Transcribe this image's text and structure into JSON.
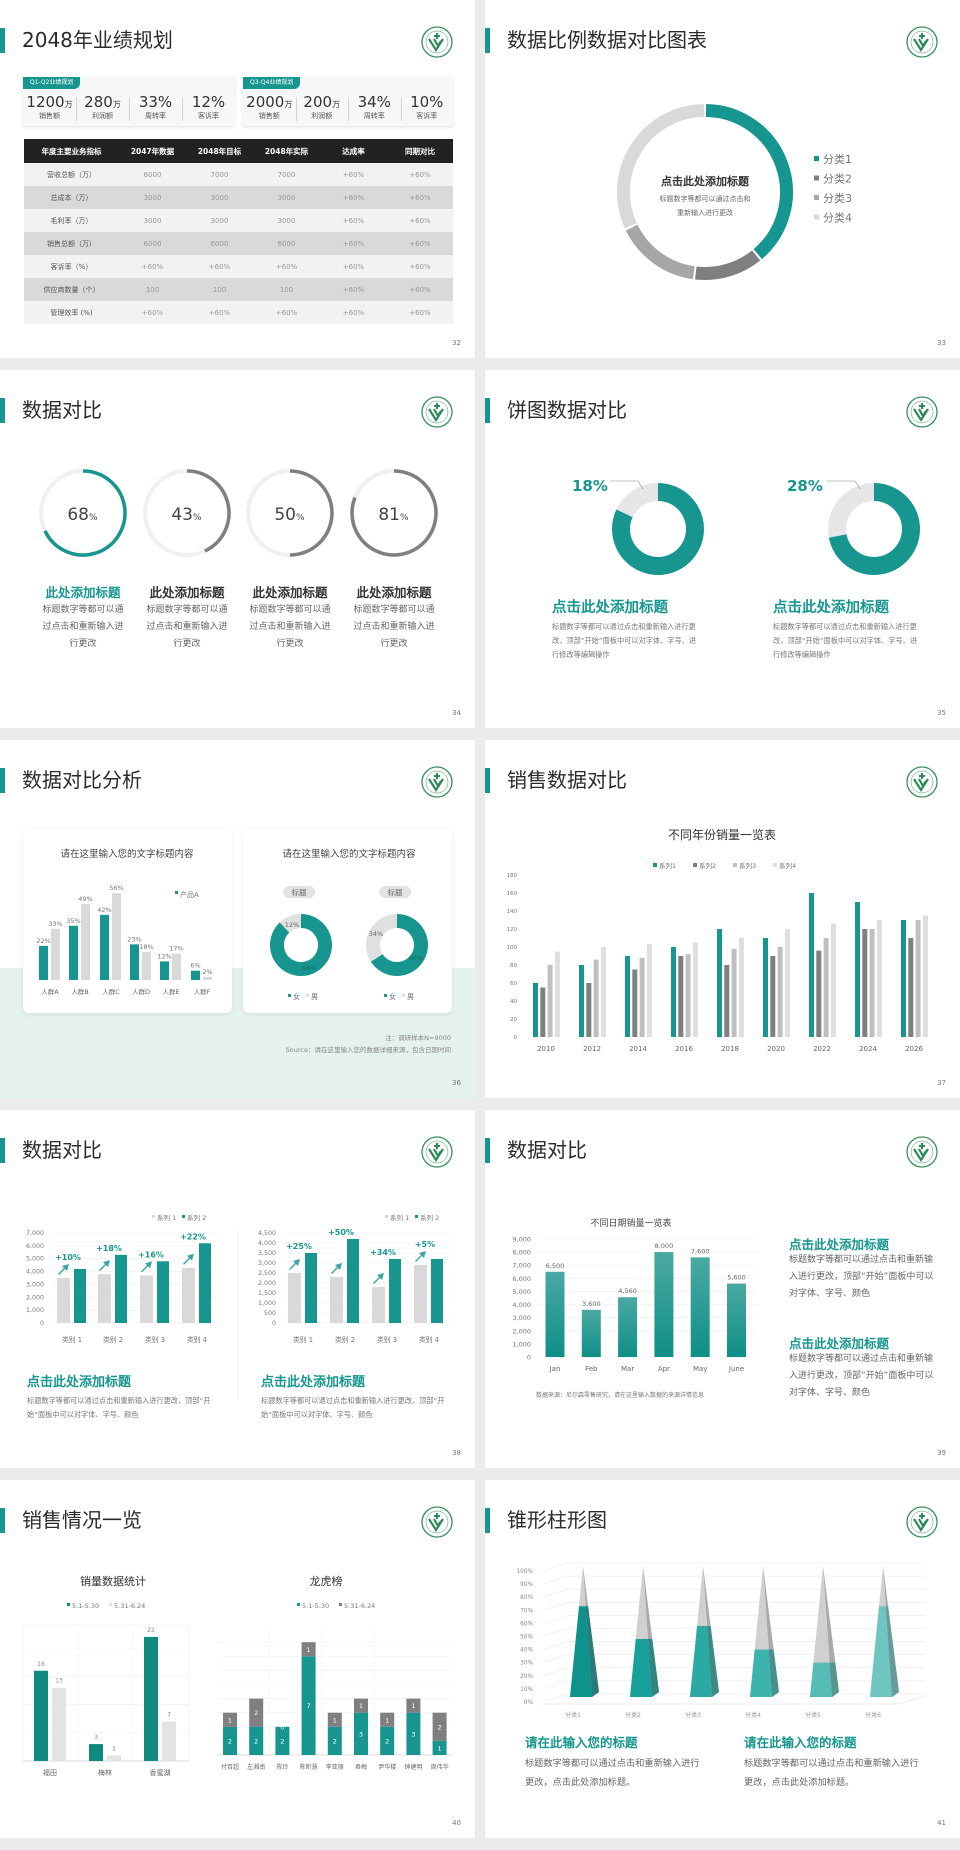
{
  "colors": {
    "teal": "#17968f",
    "dark_grey": "#7f7f7f",
    "mid_grey": "#a6a6a6",
    "light_grey": "#d9d9d9",
    "pale_teal_bg": "#e4f1ef",
    "logo_green": "#3a8f5e"
  },
  "logo_icon": "school-emblem-logo",
  "slides": [
    {
      "page": "32",
      "title": "2048年业绩规划",
      "kpi_groups": [
        {
          "tag": "Q1-Q2业绩规划",
          "items": [
            {
              "value": "1200",
              "unit": "万",
              "label": "销售额"
            },
            {
              "value": "280",
              "unit": "万",
              "label": "利润额"
            },
            {
              "value": "33%",
              "unit": "",
              "label": "周转率"
            },
            {
              "value": "12%",
              "unit": "",
              "label": "客诉率"
            }
          ]
        },
        {
          "tag": "Q3-Q4业绩规划",
          "items": [
            {
              "value": "2000",
              "unit": "万",
              "label": "销售额"
            },
            {
              "value": "200",
              "unit": "万",
              "label": "利润额"
            },
            {
              "value": "34%",
              "unit": "",
              "label": "周转率"
            },
            {
              "value": "10%",
              "unit": "",
              "label": "客诉率"
            }
          ]
        }
      ],
      "table": {
        "headers": [
          "年度主要业务指标",
          "2047年数据",
          "2048年目标",
          "2048年实际",
          "达成率",
          "同期对比"
        ],
        "rows": [
          [
            "营收总额（万）",
            "6000",
            "7000",
            "7000",
            "+60%",
            "+60%"
          ],
          [
            "总成本（万）",
            "3000",
            "3000",
            "3000",
            "+60%",
            "+60%"
          ],
          [
            "毛利率（万）",
            "3000",
            "3000",
            "3000",
            "+60%",
            "+60%"
          ],
          [
            "销售总额（万）",
            "6000",
            "6000",
            "6000",
            "+60%",
            "+60%"
          ],
          [
            "客诉率（%）",
            "+60%",
            "+60%",
            "+60%",
            "+60%",
            "+60%"
          ],
          [
            "供应商数量（个）",
            "100",
            "100",
            "100",
            "+60%",
            "+60%"
          ],
          [
            "管理效率 (%)",
            "+60%",
            "+60%",
            "+60%",
            "+60%",
            "+60%"
          ]
        ]
      }
    },
    {
      "page": "33",
      "title": "数据比例数据对比图表",
      "center_title": "点击此处添加标题",
      "center_text": [
        "标题数字等都可以通过点击和",
        "重新输入进行更改"
      ]
    },
    {
      "page": "34",
      "title": "数据对比",
      "items": [
        {
          "title": "此处添加标题",
          "text": "标题数字等都可以通过点击和重新输入进行更改"
        },
        {
          "title": "此处添加标题",
          "text": "标题数字等都可以通过点击和重新输入进行更改"
        },
        {
          "title": "此处添加标题",
          "text": "标题数字等都可以通过点击和重新输入进行更改"
        },
        {
          "title": "此处添加标题",
          "text": "标题数字等都可以通过点击和重新输入进行更改"
        }
      ]
    },
    {
      "page": "35",
      "title": "饼图数据对比",
      "items": [
        {
          "title": "点击此处添加标题",
          "text": "标题数字等都可以通过点击和重新输入进行更改，顶部“开始”面板中可以对字体、字号、进行修改等编辑操作"
        },
        {
          "title": "点击此处添加标题",
          "text": "标题数字等都可以通过点击和重新输入进行更改，顶部“开始”面板中可以对字体、字号、进行修改等编辑操作"
        }
      ]
    },
    {
      "page": "36",
      "title": "数据对比分析",
      "note": "注：调研样本N=9000",
      "source": "Source：请在这里输入您的数据详细来源，包含日期时间"
    },
    {
      "page": "37",
      "title": "销售数据对比"
    },
    {
      "page": "38",
      "title": "数据对比",
      "items": [
        {
          "title": "点击此处添加标题",
          "text": "标题数字等都可以通过点击和重新输入进行更改，顶部“开始”面板中可以对字体、字号、颜色"
        },
        {
          "title": "点击此处添加标题",
          "text": "标题数字等都可以通过点击和重新输入进行更改，顶部“开始”面板中可以对字体、字号、颜色"
        }
      ]
    },
    {
      "page": "39",
      "title": "数据对比",
      "source": "数据来源：尼尔森零售研究，请在这里输入数据的来源详情信息",
      "items": [
        {
          "title": "点击此处添加标题",
          "text": "标题数字等都可以通过点击和重新输入进行更改，顶部“开始”面板中可以对字体、字号、颜色"
        },
        {
          "title": "点击此处添加标题",
          "text": "标题数字等都可以通过点击和重新输入进行更改，顶部“开始”面板中可以对字体、字号、颜色"
        }
      ]
    },
    {
      "page": "40",
      "title": "销售情况一览"
    },
    {
      "page": "41",
      "title": "锥形柱形图",
      "items": [
        {
          "title": "请在此输入您的标题",
          "text": "标题数字等都可以通过点击和重新输入进行更改，点击此处添加标题。"
        },
        {
          "title": "请在此输入您的标题",
          "text": "标题数字等都可以通过点击和重新输入进行更改，点击此处添加标题。"
        }
      ]
    }
  ],
  "chart_data": [
    {
      "type": "pie",
      "hole": true,
      "categories": [
        "分类1",
        "分类2",
        "分类3",
        "分类4"
      ],
      "values": [
        39,
        13,
        16,
        32
      ],
      "legend": "right",
      "colors": [
        "#17968f",
        "#7f7f7f",
        "#a6a6a6",
        "#d9d9d9"
      ]
    },
    {
      "type": "pie",
      "variant": "progress-ring",
      "values": [
        68,
        43,
        50,
        81
      ],
      "labels": [
        "68",
        "43",
        "50",
        "81"
      ],
      "unit": "%",
      "colors": [
        "#17968f",
        "#7f7f7f",
        "#7f7f7f",
        "#7f7f7f"
      ]
    },
    {
      "type": "pie",
      "hole": true,
      "values": [
        18,
        28
      ],
      "labels": [
        "18%",
        "28%"
      ],
      "colors": [
        "#e6e6e6",
        "#17968f"
      ]
    },
    {
      "type": "bar",
      "title": "请在这里输入您的文字标题内容",
      "categories": [
        "人群A",
        "人群B",
        "人群C",
        "人群D",
        "人群E",
        "人群F"
      ],
      "series": [
        {
          "name": "产品A",
          "values": [
            22,
            35,
            42,
            23,
            12,
            6
          ],
          "labels": [
            "22%",
            "35%",
            "42%",
            "23%",
            "12%",
            "6%"
          ],
          "color": "#17968f"
        },
        {
          "values": [
            33,
            49,
            56,
            18,
            17,
            2
          ],
          "labels": [
            "33%",
            "49%",
            "56%",
            "18%",
            "17%",
            "2%"
          ],
          "color": "#d9d9d9"
        }
      ],
      "legend": "top-right",
      "ylim": [
        0,
        60
      ]
    },
    {
      "type": "pie",
      "hole": true,
      "title": "请在这里输入您的文字标题内容",
      "tag": "标题",
      "legend": [
        "女",
        "男"
      ],
      "charts": [
        {
          "values": [
            88,
            12
          ],
          "labels": [
            "88%",
            "12%"
          ]
        },
        {
          "values": [
            66,
            34
          ],
          "labels": [
            "66%",
            "34%"
          ]
        }
      ]
    },
    {
      "type": "bar",
      "title": "不同年份销量一览表",
      "categories": [
        "2010",
        "2012",
        "2014",
        "2016",
        "2018",
        "2020",
        "2022",
        "2024",
        "2026"
      ],
      "series": [
        {
          "name": "系列1",
          "values": [
            60,
            80,
            90,
            100,
            120,
            110,
            160,
            150,
            130
          ],
          "color": "#17968f"
        },
        {
          "name": "系列2",
          "values": [
            55,
            60,
            75,
            90,
            80,
            90,
            96,
            120,
            110
          ],
          "color": "#7f7f7f"
        },
        {
          "name": "系列3",
          "values": [
            80,
            86,
            88,
            92,
            98,
            100,
            110,
            120,
            130
          ],
          "color": "#bfbfbf"
        },
        {
          "name": "系列4",
          "values": [
            95,
            100,
            103,
            105,
            110,
            120,
            126,
            130,
            135
          ],
          "color": "#dedede"
        }
      ],
      "ylim": [
        0,
        180
      ],
      "yticks": [
        "0",
        "20",
        "40",
        "60",
        "80",
        "100",
        "120",
        "140",
        "160",
        "180"
      ],
      "legend": "top",
      "grid": false
    },
    {
      "type": "bar",
      "categories": [
        "类别 1",
        "类别 2",
        "类别 3",
        "类别 4"
      ],
      "series": [
        {
          "name": "系列 1",
          "values": [
            3500,
            3800,
            3700,
            4300
          ],
          "color": "#d9d9d9"
        },
        {
          "name": "系列 2",
          "values": [
            4200,
            5300,
            4800,
            6200
          ],
          "color": "#17968f"
        }
      ],
      "annotations": [
        "+10%",
        "+18%",
        "+16%",
        "+22%"
      ],
      "ylim": [
        0,
        7000
      ],
      "yticks": [
        "0",
        "1,000",
        "2,000",
        "3,000",
        "4,000",
        "5,000",
        "6,000",
        "7,000"
      ],
      "legend": "top-right",
      "grid": true
    },
    {
      "type": "bar",
      "categories": [
        "类别 1",
        "类别 2",
        "类别 3",
        "类别 4"
      ],
      "series": [
        {
          "name": "系列 1",
          "values": [
            2500,
            2300,
            1800,
            2900
          ],
          "color": "#d9d9d9"
        },
        {
          "name": "系列 2",
          "values": [
            3500,
            4200,
            3200,
            3200
          ],
          "color": "#17968f"
        }
      ],
      "annotations": [
        "+25%",
        "+50%",
        "+34%",
        "+5%"
      ],
      "ylim": [
        0,
        4500
      ],
      "yticks": [
        "0",
        "500",
        "1,000",
        "1,500",
        "2,000",
        "2,500",
        "3,000",
        "3,500",
        "4,000",
        "4,500"
      ],
      "legend": "top-right",
      "grid": true
    },
    {
      "type": "bar",
      "title": "不同日期销量一览表",
      "categories": [
        "Jan",
        "Feb",
        "Mar",
        "Apr",
        "May",
        "June"
      ],
      "values": [
        6500,
        3600,
        4560,
        8000,
        7600,
        5600
      ],
      "labels": [
        "6,500",
        "3,600",
        "4,560",
        "8,000",
        "7,600",
        "5,600"
      ],
      "ylim": [
        0,
        9000
      ],
      "yticks": [
        "0",
        "1,000",
        "2,000",
        "3,000",
        "4,000",
        "5,000",
        "6,000",
        "7,000",
        "8,000",
        "9,000"
      ],
      "grid": true
    },
    {
      "type": "bar",
      "title": "销量数据统计",
      "categories": [
        "福田",
        "梅林",
        "香蜜湖"
      ],
      "series": [
        {
          "name": "5.1-5.30",
          "values": [
            16,
            3,
            22
          ],
          "color": "#0f8a80"
        },
        {
          "name": "5.31-6.24",
          "values": [
            13,
            1,
            7
          ],
          "color": "#e3e3e3"
        }
      ],
      "ylim": [
        0,
        25
      ],
      "legend": "top",
      "grid": true
    },
    {
      "type": "bar",
      "variant": "stacked",
      "title": "龙虎榜",
      "categories": [
        "付百超",
        "左湘南",
        "陈玲",
        "陈昕慧",
        "李亚丽",
        "君梅",
        "尹华楼",
        "钟建明",
        "周伟华"
      ],
      "series": [
        {
          "name": "5.1-5.30",
          "values": [
            2,
            2,
            2,
            7,
            2,
            3,
            2,
            3,
            1
          ],
          "color": "#17968f"
        },
        {
          "name": "5.31-6.24",
          "values": [
            1,
            2,
            0,
            1,
            1,
            1,
            1,
            1,
            2
          ],
          "color": "#7f7f7f"
        }
      ],
      "ylim": [
        0,
        8
      ],
      "legend": "top",
      "grid": true
    },
    {
      "type": "bar",
      "variant": "3d-cone",
      "categories": [
        "分类1",
        "分类2",
        "分类3",
        "分类4",
        "分类5",
        "分类6"
      ],
      "values": [
        70,
        45,
        55,
        37,
        27,
        70
      ],
      "ylim": [
        0,
        100
      ],
      "yticks": [
        "0%",
        "10%",
        "20%",
        "30%",
        "40%",
        "50%",
        "60%",
        "70%",
        "80%",
        "90%",
        "100%"
      ],
      "colors": [
        "#0e938c",
        "#18a09a",
        "#2aaaa3",
        "#3db3ad",
        "#56bcb6",
        "#6fc6c1"
      ],
      "grid": true
    }
  ]
}
